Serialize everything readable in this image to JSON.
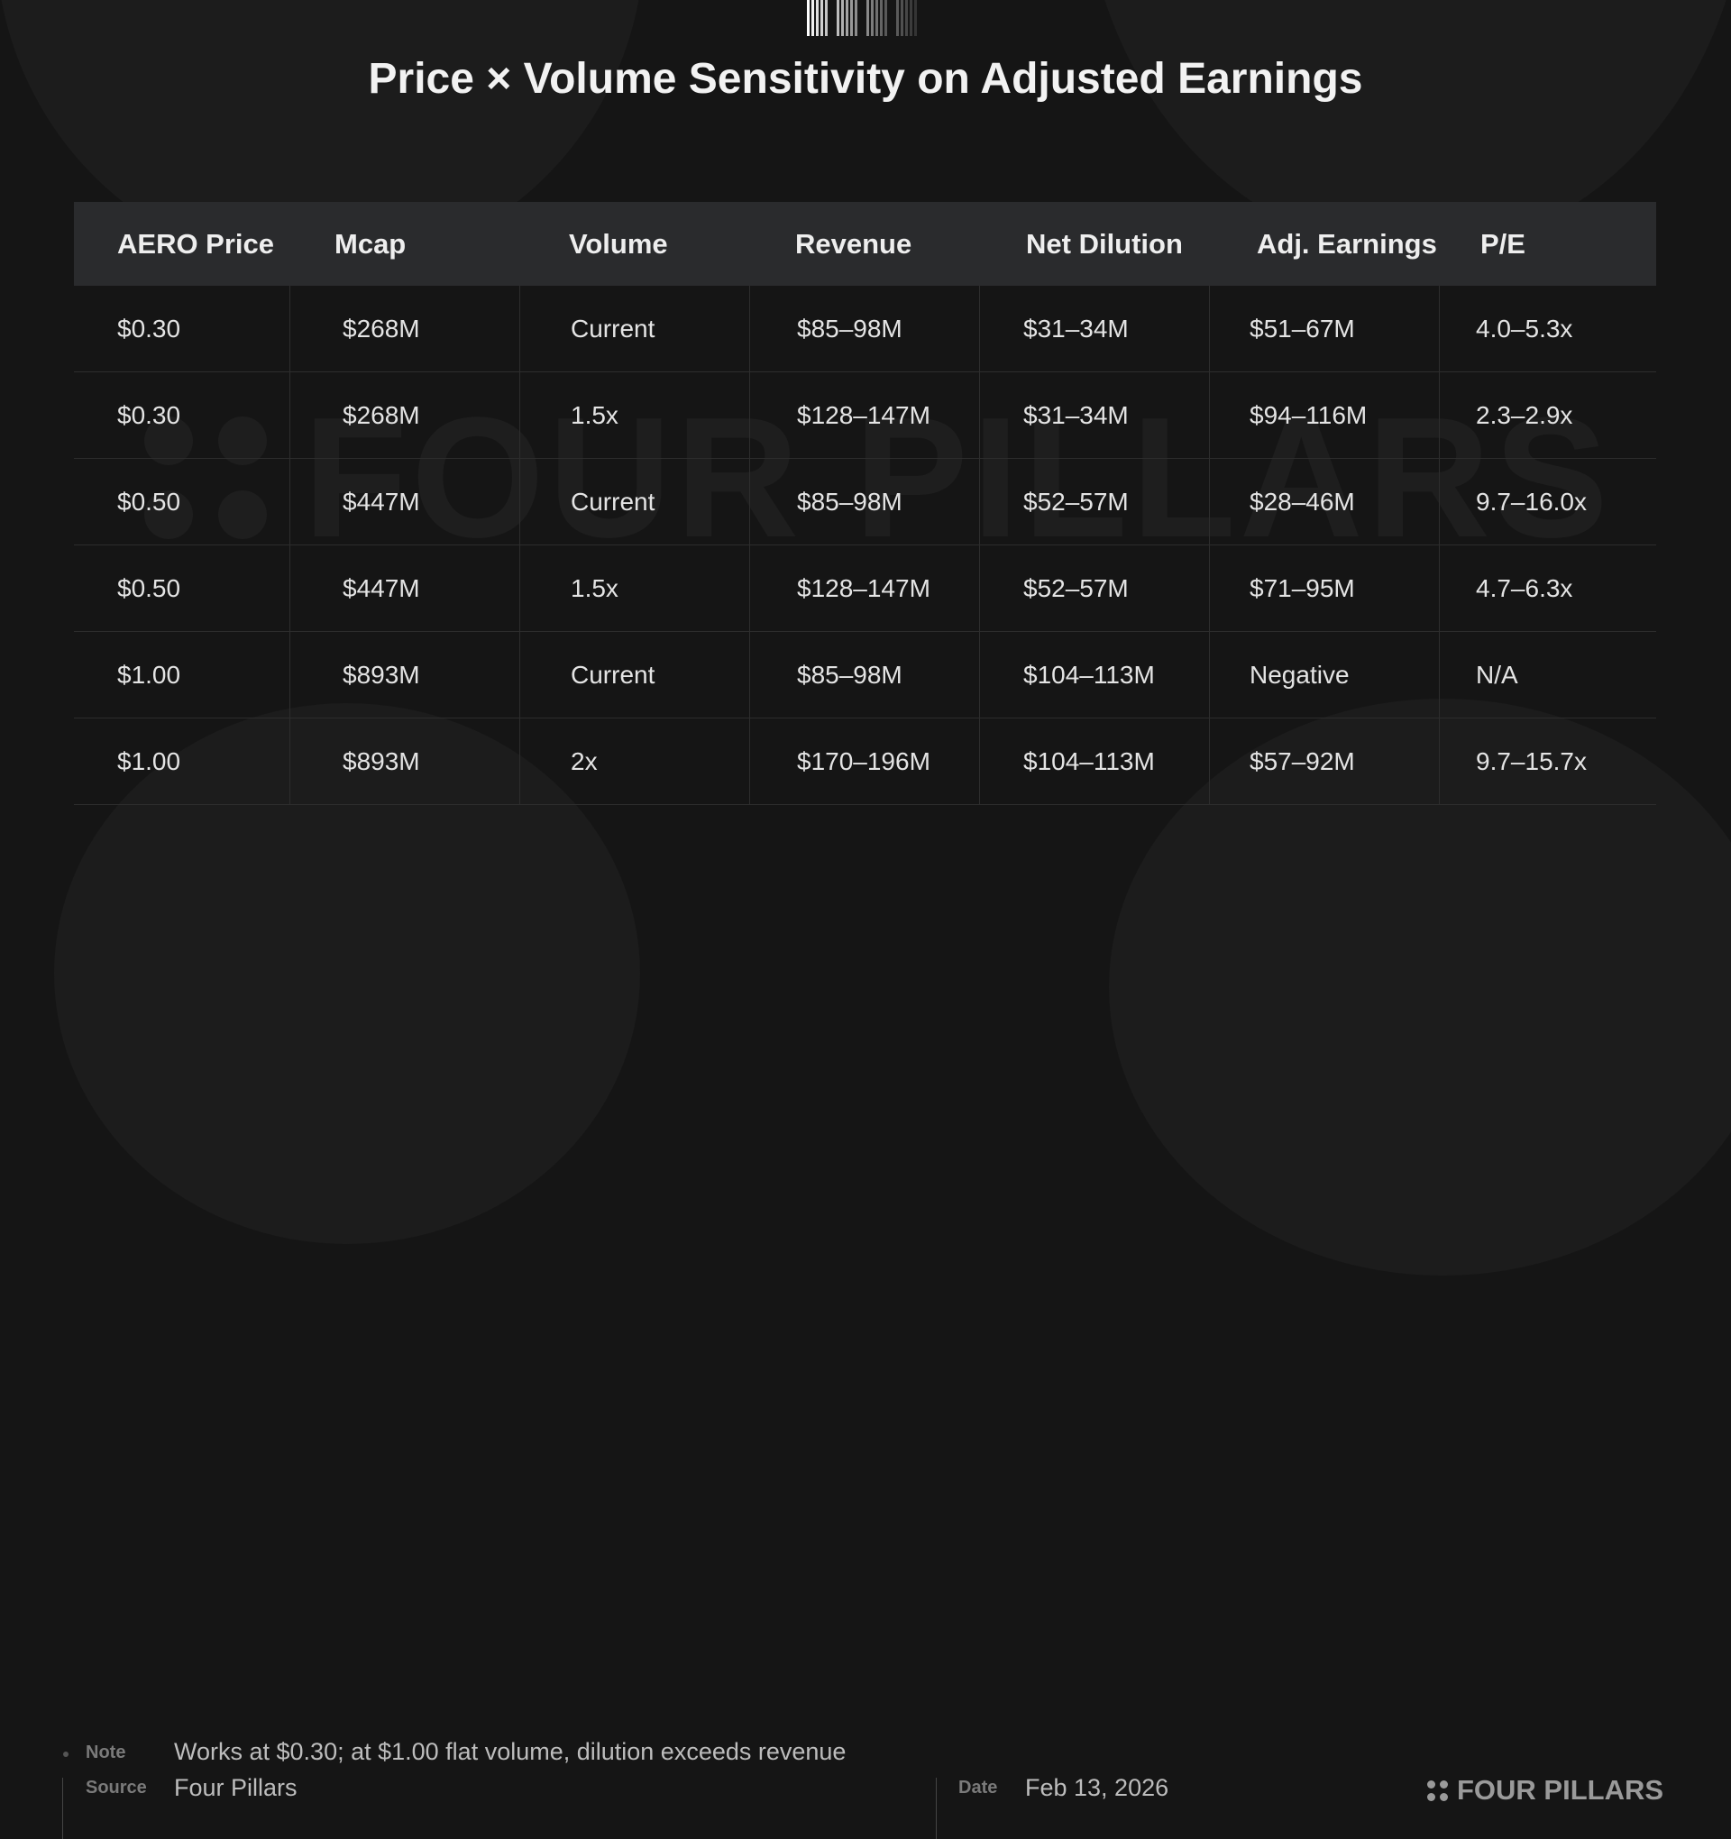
{
  "title": "Price × Volume Sensitivity on Adjusted Earnings",
  "table": {
    "headers": [
      "AERO Price",
      "Mcap",
      "Volume",
      "Revenue",
      "Net Dilution",
      "Adj. Earnings",
      "P/E"
    ],
    "rows": [
      [
        "$0.30",
        "$268M",
        "Current",
        "$85–98M",
        "$31–34M",
        "$51–67M",
        "4.0–5.3x"
      ],
      [
        "$0.30",
        "$268M",
        "1.5x",
        "$128–147M",
        "$31–34M",
        "$94–116M",
        "2.3–2.9x"
      ],
      [
        "$0.50",
        "$447M",
        "Current",
        "$85–98M",
        "$52–57M",
        "$28–46M",
        "9.7–16.0x"
      ],
      [
        "$0.50",
        "$447M",
        "1.5x",
        "$128–147M",
        "$52–57M",
        "$71–95M",
        "4.7–6.3x"
      ],
      [
        "$1.00",
        "$893M",
        "Current",
        "$85–98M",
        "$104–113M",
        "Negative",
        "N/A"
      ],
      [
        "$1.00",
        "$893M",
        "2x",
        "$170–196M",
        "$104–113M",
        "$57–92M",
        "9.7–15.7x"
      ]
    ]
  },
  "footer": {
    "note_label": "Note",
    "note": "Works at $0.30; at $1.00 flat volume, dilution exceeds revenue",
    "source_label": "Source",
    "source": "Four Pillars",
    "date_label": "Date",
    "date": "Feb 13, 2026"
  },
  "brand": "FOUR PILLARS",
  "watermark": "FOUR PILLARS",
  "colors": {
    "background": "#151515",
    "header_row": "#2a2b2d",
    "text": "#e4e4e4"
  }
}
